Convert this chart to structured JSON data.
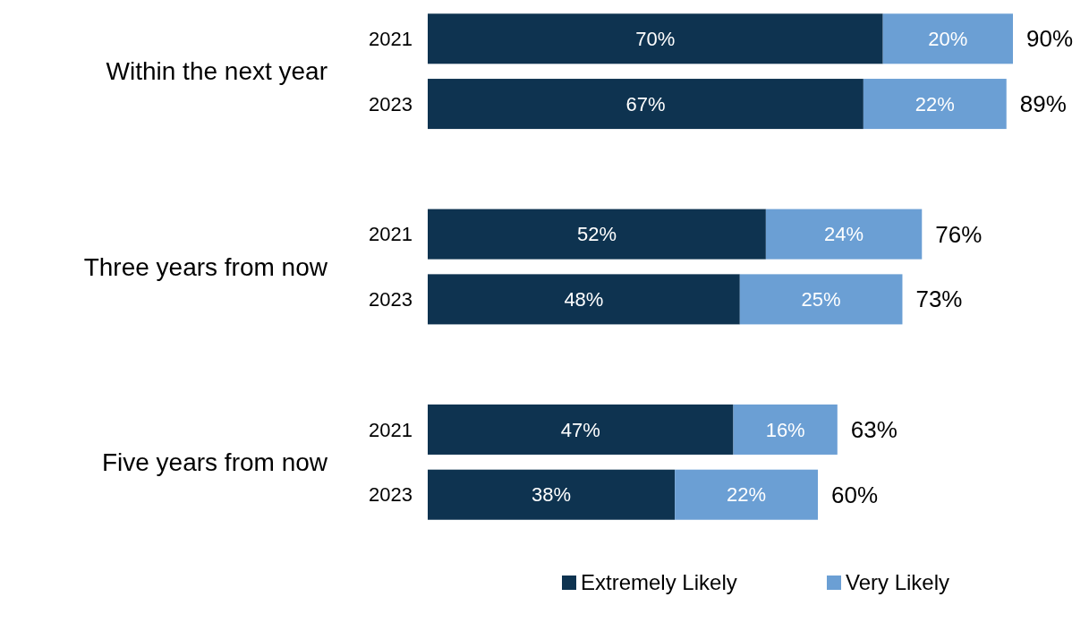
{
  "chart_data": {
    "type": "bar",
    "orientation": "horizontal",
    "stacked": true,
    "categories": [
      "2021",
      "2023",
      null,
      "2021",
      "2023",
      null,
      "2021",
      "2023"
    ],
    "series": [
      {
        "name": "Extremely Likely",
        "color": "#0e3350",
        "values": [
          70,
          67,
          null,
          52,
          48,
          null,
          47,
          38
        ],
        "value_labels": [
          "70%",
          "67%",
          null,
          "52%",
          "48%",
          null,
          "47%",
          "38%"
        ]
      },
      {
        "name": "Very Likely",
        "color": "#6b9fd4",
        "values": [
          20,
          22,
          null,
          24,
          25,
          null,
          16,
          22
        ],
        "value_labels": [
          "20%",
          "22%",
          null,
          "24%",
          "25%",
          null,
          "16%",
          "22%"
        ]
      }
    ],
    "totals": [
      "90%",
      "89%",
      null,
      "76%",
      "73%",
      null,
      "63%",
      "60%"
    ],
    "annotations": [
      "Within the next year",
      "Three years from now",
      "Five years from now"
    ],
    "legend": "bottom"
  }
}
